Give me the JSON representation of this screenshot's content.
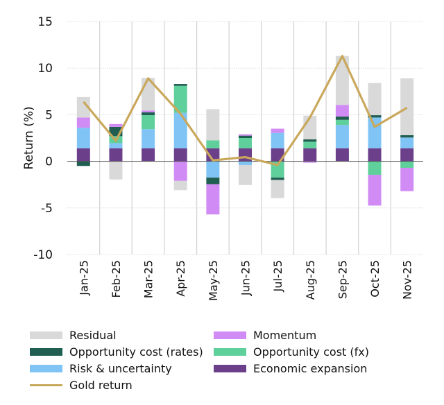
{
  "chart_data": {
    "type": "bar",
    "stacked": true,
    "ylabel": "Return (%)",
    "xlabel": "",
    "ylim": [
      -10,
      15
    ],
    "yticks": [
      15,
      10,
      5,
      0,
      -5,
      -10
    ],
    "grid": true,
    "legend_position": "bottom",
    "categories": [
      "Jan-25",
      "Feb-25",
      "Mar-25",
      "Apr-25",
      "May-25",
      "Jun-25",
      "Jul-25",
      "Aug-25",
      "Sep-25",
      "Oct-25",
      "Nov-25"
    ],
    "series": [
      {
        "name": "Economic expansion",
        "color": "#6b3f8a",
        "values": [
          1.4,
          1.4,
          1.4,
          1.4,
          1.4,
          1.4,
          1.4,
          1.4,
          1.4,
          1.4,
          1.4
        ]
      },
      {
        "name": "Risk & uncertainty",
        "color": "#80c4f5",
        "values": [
          2.2,
          0.55,
          2.05,
          3.8,
          -1.75,
          -0.4,
          1.65,
          0,
          2.5,
          3.3,
          1.15
        ]
      },
      {
        "name": "Opportunity cost (fx)",
        "color": "#5fcf9b",
        "values": [
          0,
          0.75,
          1.5,
          2.9,
          0.85,
          1.1,
          -1.75,
          0.7,
          0.55,
          -1.45,
          -0.7
        ]
      },
      {
        "name": "Opportunity cost (rates)",
        "color": "#1f5e51",
        "values": [
          -0.5,
          1.0,
          0.3,
          0.2,
          -0.7,
          0.25,
          -0.25,
          0.25,
          0.35,
          0.25,
          0.25
        ]
      },
      {
        "name": "Momentum",
        "color": "#d18bf4",
        "values": [
          1.1,
          0.3,
          0.2,
          -2.1,
          -3.25,
          0.15,
          0.45,
          -0.15,
          1.25,
          -3.3,
          -2.5
        ]
      },
      {
        "name": "Residual",
        "color": "#d9d9d9",
        "values": [
          2.2,
          -1.95,
          3.5,
          -1.0,
          3.35,
          -2.15,
          -1.95,
          2.55,
          5.25,
          3.45,
          6.1
        ]
      }
    ],
    "line": {
      "name": "Gold return",
      "color": "#c9a85c",
      "values": [
        6.4,
        2.2,
        8.9,
        5.1,
        0.1,
        0.45,
        -0.4,
        4.7,
        11.3,
        3.7,
        5.75
      ]
    }
  },
  "legend": [
    {
      "label": "Residual",
      "color": "#d9d9d9",
      "kind": "box"
    },
    {
      "label": "Momentum",
      "color": "#d18bf4",
      "kind": "box"
    },
    {
      "label": "Opportunity cost (rates)",
      "color": "#1f5e51",
      "kind": "box"
    },
    {
      "label": "Opportunity cost (fx)",
      "color": "#5fcf9b",
      "kind": "box"
    },
    {
      "label": "Risk & uncertainty",
      "color": "#80c4f5",
      "kind": "box"
    },
    {
      "label": "Economic expansion",
      "color": "#6b3f8a",
      "kind": "box"
    },
    {
      "label": "Gold return",
      "color": "#c9a85c",
      "kind": "line"
    }
  ]
}
